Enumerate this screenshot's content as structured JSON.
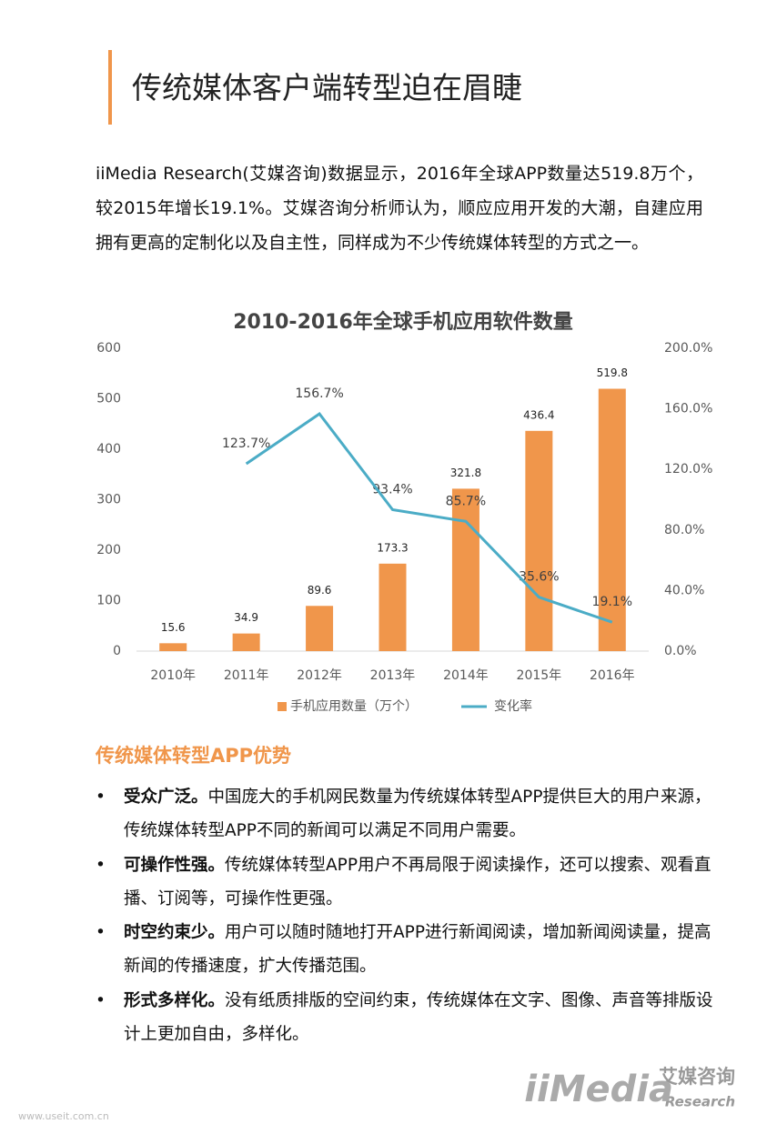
{
  "header": {
    "title": "传统媒体客户端转型迫在眉睫"
  },
  "paragraph": "iiMedia Research(艾媒咨询)数据显示，2016年全球APP数量达519.8万个，较2015年增长19.1%。艾媒咨询分析师认为，顺应应用开发的大潮，自建应用拥有更高的定制化以及自主性，同样成为不少传统媒体转型的方式之一。",
  "chart_data": {
    "type": "bar",
    "title": "2010-2016年全球手机应用软件数量",
    "categories": [
      "2010年",
      "2011年",
      "2012年",
      "2013年",
      "2014年",
      "2015年",
      "2016年"
    ],
    "series": [
      {
        "name": "手机应用数量（万个）",
        "type": "bar",
        "color": "#f0964b",
        "values": [
          15.6,
          34.9,
          89.6,
          173.3,
          321.8,
          436.4,
          519.8
        ]
      },
      {
        "name": "变化率",
        "type": "line",
        "axis": "y2",
        "color": "#4bacc6",
        "values": [
          null,
          123.7,
          156.7,
          93.4,
          85.7,
          35.6,
          19.1
        ],
        "value_labels": [
          null,
          "123.7%",
          "156.7%",
          "93.4%",
          "85.7%",
          "35.6%",
          "19.1%"
        ]
      }
    ],
    "ylim": [
      0,
      600
    ],
    "yticks": [
      0,
      100,
      200,
      300,
      400,
      500,
      600
    ],
    "y2lim": [
      0,
      200
    ],
    "y2ticks": [
      {
        "value": 0,
        "label": "0.0%"
      },
      {
        "value": 40,
        "label": "40.0%"
      },
      {
        "value": 80,
        "label": "80.0%"
      },
      {
        "value": 120,
        "label": "120.0%"
      },
      {
        "value": 160,
        "label": "160.0%"
      },
      {
        "value": 200,
        "label": "200.0%"
      }
    ],
    "legend": "bottom",
    "grid": false
  },
  "section_title": "传统媒体转型APP优势",
  "bullets": [
    {
      "lead": "受众广泛。",
      "text": "中国庞大的手机网民数量为传统媒体转型APP提供巨大的用户来源，传统媒体转型APP不同的新闻可以满足不同用户需要。"
    },
    {
      "lead": "可操作性强。",
      "text": "传统媒体转型APP用户不再局限于阅读操作，还可以搜索、观看直播、订阅等，可操作性更强。"
    },
    {
      "lead": "时空约束少。",
      "text": "用户可以随时随地打开APP进行新闻阅读，增加新闻阅读量，提高新闻的传播速度，扩大传播范围。"
    },
    {
      "lead": "形式多样化。",
      "text": "没有纸质排版的空间约束，传统媒体在文字、图像、声音等排版设计上更加自由，多样化。"
    }
  ],
  "logo": {
    "brand": "iiMedia",
    "cn": "艾媒咨询",
    "en": "Research"
  },
  "footer": "www.useit.com.cn"
}
